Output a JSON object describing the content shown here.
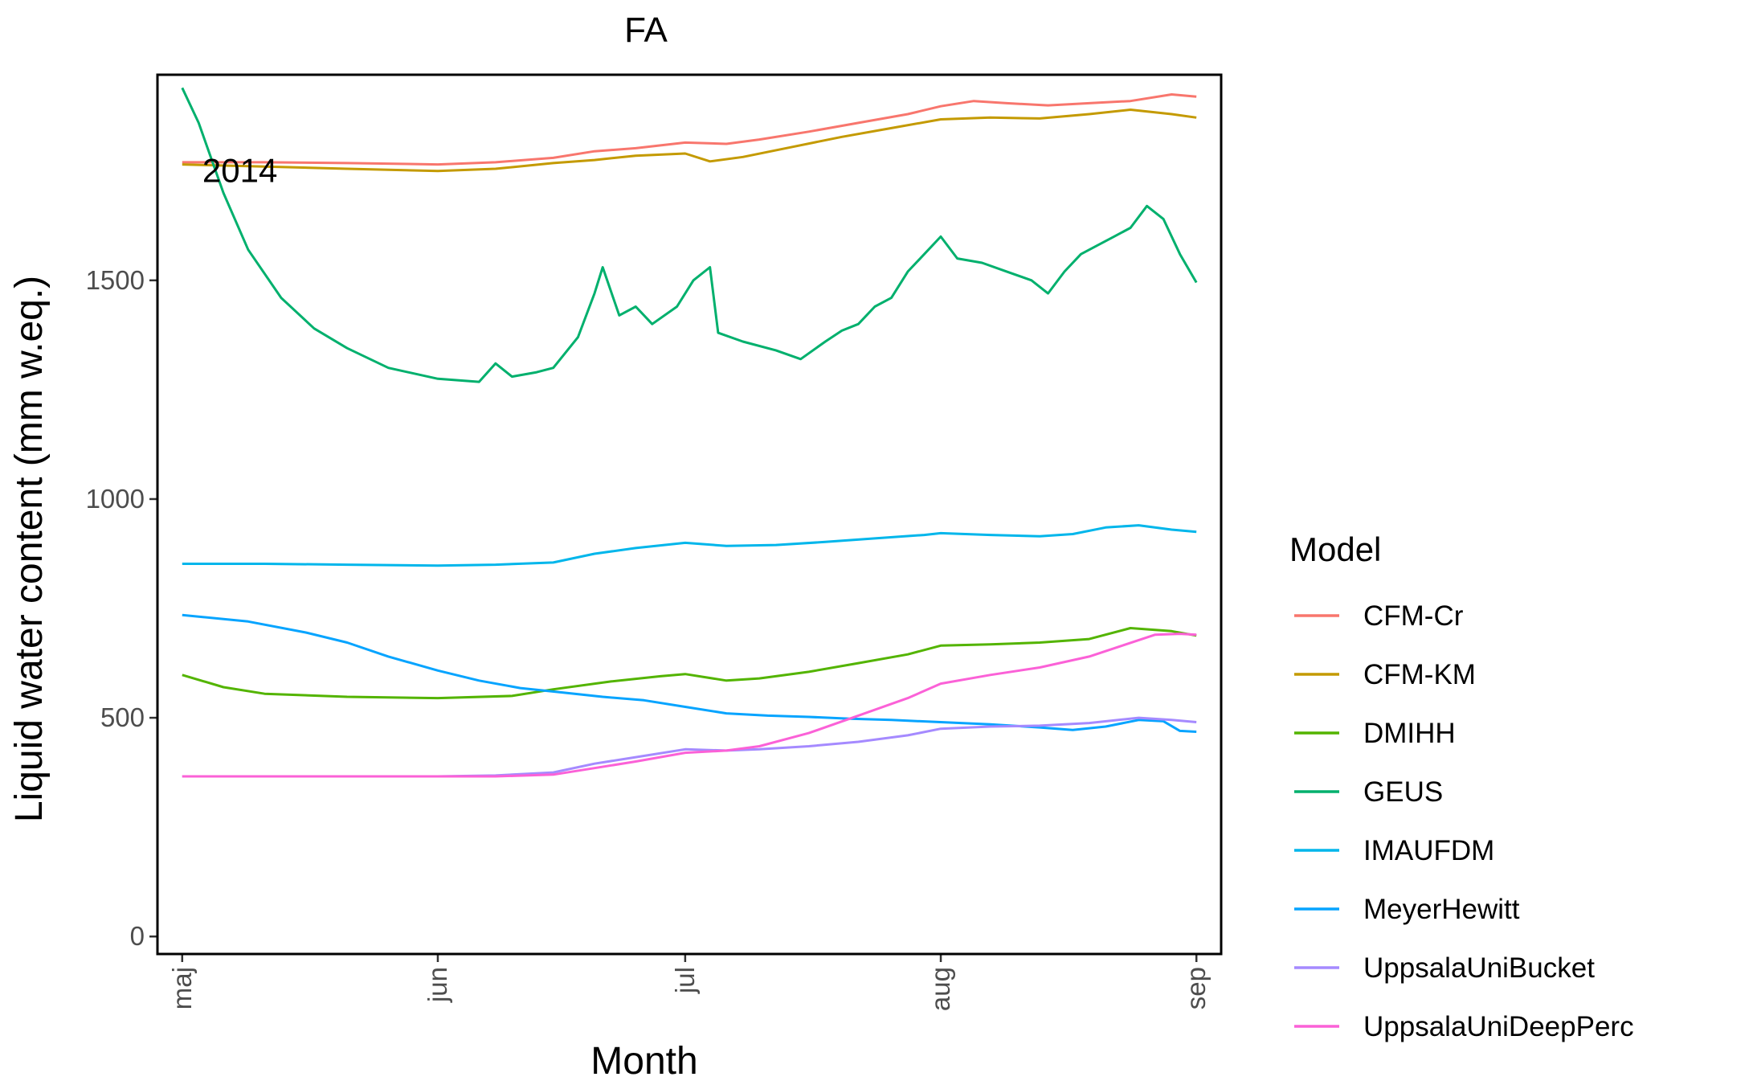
{
  "chart_data": {
    "type": "line",
    "title": "FA",
    "xlabel": "Month",
    "ylabel": "Liquid water content (mm w.eq.)",
    "x_ticks": [
      {
        "label": "maj",
        "day": 0
      },
      {
        "label": "jun",
        "day": 31
      },
      {
        "label": "jul",
        "day": 61
      },
      {
        "label": "aug",
        "day": 92
      },
      {
        "label": "sep",
        "day": 123
      }
    ],
    "xlim": [
      -3,
      126
    ],
    "ylim": [
      -40,
      1970
    ],
    "y_ticks": [
      0,
      500,
      1000,
      1500
    ],
    "annotation": {
      "text": "2014",
      "x": 7,
      "y": 1750
    },
    "legend": {
      "title": "Model",
      "position": "right"
    },
    "grid": false,
    "series": [
      {
        "name": "CFM-Cr",
        "color": "#F8766D",
        "points": [
          [
            0,
            1770
          ],
          [
            10,
            1770
          ],
          [
            20,
            1768
          ],
          [
            31,
            1765
          ],
          [
            38,
            1770
          ],
          [
            45,
            1780
          ],
          [
            50,
            1795
          ],
          [
            55,
            1802
          ],
          [
            61,
            1815
          ],
          [
            66,
            1812
          ],
          [
            70,
            1822
          ],
          [
            76,
            1840
          ],
          [
            82,
            1860
          ],
          [
            88,
            1880
          ],
          [
            92,
            1898
          ],
          [
            96,
            1910
          ],
          [
            100,
            1905
          ],
          [
            105,
            1900
          ],
          [
            110,
            1905
          ],
          [
            115,
            1910
          ],
          [
            120,
            1925
          ],
          [
            123,
            1920
          ]
        ]
      },
      {
        "name": "CFM-KM",
        "color": "#C49A00",
        "points": [
          [
            0,
            1765
          ],
          [
            10,
            1760
          ],
          [
            20,
            1755
          ],
          [
            31,
            1750
          ],
          [
            38,
            1755
          ],
          [
            45,
            1768
          ],
          [
            50,
            1775
          ],
          [
            55,
            1785
          ],
          [
            61,
            1790
          ],
          [
            64,
            1772
          ],
          [
            68,
            1782
          ],
          [
            74,
            1805
          ],
          [
            80,
            1828
          ],
          [
            86,
            1848
          ],
          [
            92,
            1868
          ],
          [
            98,
            1872
          ],
          [
            104,
            1870
          ],
          [
            110,
            1880
          ],
          [
            115,
            1890
          ],
          [
            120,
            1880
          ],
          [
            123,
            1872
          ]
        ]
      },
      {
        "name": "DMIHH",
        "color": "#53B400",
        "points": [
          [
            0,
            598
          ],
          [
            5,
            570
          ],
          [
            10,
            555
          ],
          [
            20,
            548
          ],
          [
            31,
            545
          ],
          [
            40,
            550
          ],
          [
            45,
            565
          ],
          [
            52,
            583
          ],
          [
            58,
            595
          ],
          [
            61,
            600
          ],
          [
            66,
            585
          ],
          [
            70,
            590
          ],
          [
            76,
            605
          ],
          [
            82,
            625
          ],
          [
            88,
            645
          ],
          [
            92,
            665
          ],
          [
            98,
            668
          ],
          [
            104,
            672
          ],
          [
            110,
            680
          ],
          [
            115,
            705
          ],
          [
            120,
            698
          ],
          [
            123,
            688
          ]
        ]
      },
      {
        "name": "GEUS",
        "color": "#00B06D",
        "points": [
          [
            0,
            1940
          ],
          [
            2,
            1860
          ],
          [
            5,
            1700
          ],
          [
            8,
            1570
          ],
          [
            12,
            1460
          ],
          [
            16,
            1390
          ],
          [
            20,
            1345
          ],
          [
            25,
            1300
          ],
          [
            31,
            1275
          ],
          [
            36,
            1268
          ],
          [
            38,
            1310
          ],
          [
            40,
            1280
          ],
          [
            43,
            1290
          ],
          [
            45,
            1300
          ],
          [
            48,
            1370
          ],
          [
            50,
            1470
          ],
          [
            51,
            1530
          ],
          [
            53,
            1420
          ],
          [
            55,
            1440
          ],
          [
            57,
            1400
          ],
          [
            60,
            1440
          ],
          [
            62,
            1500
          ],
          [
            64,
            1530
          ],
          [
            65,
            1380
          ],
          [
            68,
            1360
          ],
          [
            72,
            1340
          ],
          [
            75,
            1320
          ],
          [
            78,
            1360
          ],
          [
            80,
            1385
          ],
          [
            82,
            1400
          ],
          [
            84,
            1440
          ],
          [
            86,
            1460
          ],
          [
            88,
            1520
          ],
          [
            90,
            1560
          ],
          [
            92,
            1600
          ],
          [
            94,
            1550
          ],
          [
            97,
            1540
          ],
          [
            100,
            1520
          ],
          [
            103,
            1500
          ],
          [
            105,
            1470
          ],
          [
            107,
            1520
          ],
          [
            109,
            1560
          ],
          [
            111,
            1580
          ],
          [
            113,
            1600
          ],
          [
            115,
            1620
          ],
          [
            117,
            1670
          ],
          [
            119,
            1640
          ],
          [
            121,
            1560
          ],
          [
            123,
            1495
          ]
        ]
      },
      {
        "name": "IMAUFDM",
        "color": "#00B6EB",
        "points": [
          [
            0,
            852
          ],
          [
            10,
            852
          ],
          [
            20,
            850
          ],
          [
            31,
            848
          ],
          [
            38,
            850
          ],
          [
            45,
            855
          ],
          [
            50,
            875
          ],
          [
            55,
            888
          ],
          [
            61,
            900
          ],
          [
            66,
            893
          ],
          [
            72,
            895
          ],
          [
            78,
            902
          ],
          [
            84,
            910
          ],
          [
            90,
            918
          ],
          [
            92,
            922
          ],
          [
            98,
            918
          ],
          [
            104,
            915
          ],
          [
            108,
            920
          ],
          [
            112,
            935
          ],
          [
            116,
            940
          ],
          [
            120,
            930
          ],
          [
            123,
            925
          ]
        ]
      },
      {
        "name": "MeyerHewitt",
        "color": "#06A4FF",
        "points": [
          [
            0,
            735
          ],
          [
            8,
            720
          ],
          [
            15,
            695
          ],
          [
            20,
            672
          ],
          [
            25,
            640
          ],
          [
            31,
            608
          ],
          [
            36,
            585
          ],
          [
            41,
            568
          ],
          [
            46,
            558
          ],
          [
            51,
            548
          ],
          [
            56,
            540
          ],
          [
            61,
            525
          ],
          [
            66,
            510
          ],
          [
            71,
            505
          ],
          [
            76,
            502
          ],
          [
            81,
            498
          ],
          [
            86,
            495
          ],
          [
            92,
            490
          ],
          [
            98,
            485
          ],
          [
            104,
            478
          ],
          [
            108,
            472
          ],
          [
            112,
            480
          ],
          [
            116,
            495
          ],
          [
            119,
            492
          ],
          [
            121,
            470
          ],
          [
            123,
            468
          ]
        ]
      },
      {
        "name": "UppsalaUniBucket",
        "color": "#A58AFF",
        "points": [
          [
            0,
            366
          ],
          [
            10,
            366
          ],
          [
            20,
            366
          ],
          [
            31,
            366
          ],
          [
            38,
            368
          ],
          [
            45,
            375
          ],
          [
            50,
            395
          ],
          [
            55,
            410
          ],
          [
            61,
            428
          ],
          [
            66,
            425
          ],
          [
            70,
            428
          ],
          [
            76,
            435
          ],
          [
            82,
            445
          ],
          [
            88,
            460
          ],
          [
            92,
            475
          ],
          [
            98,
            480
          ],
          [
            104,
            482
          ],
          [
            110,
            488
          ],
          [
            116,
            500
          ],
          [
            120,
            495
          ],
          [
            123,
            490
          ]
        ]
      },
      {
        "name": "UppsalaUniDeepPerc",
        "color": "#FB61D7",
        "points": [
          [
            0,
            366
          ],
          [
            10,
            366
          ],
          [
            20,
            366
          ],
          [
            31,
            366
          ],
          [
            38,
            366
          ],
          [
            45,
            370
          ],
          [
            50,
            385
          ],
          [
            55,
            400
          ],
          [
            61,
            420
          ],
          [
            66,
            425
          ],
          [
            70,
            435
          ],
          [
            76,
            465
          ],
          [
            82,
            505
          ],
          [
            88,
            545
          ],
          [
            92,
            578
          ],
          [
            98,
            598
          ],
          [
            104,
            615
          ],
          [
            110,
            640
          ],
          [
            114,
            665
          ],
          [
            118,
            690
          ],
          [
            121,
            692
          ],
          [
            123,
            690
          ]
        ]
      }
    ]
  }
}
